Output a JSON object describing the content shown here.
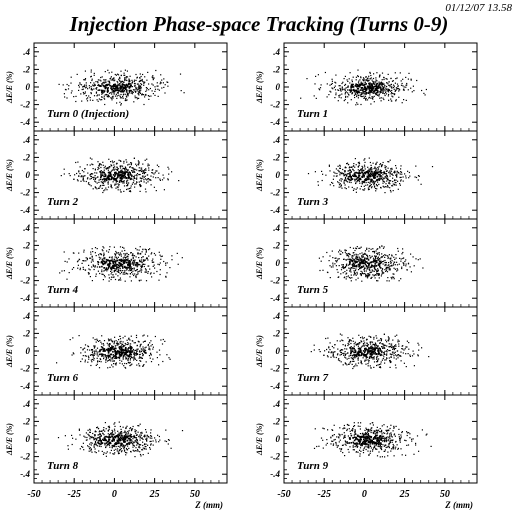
{
  "header": {
    "timestamp": "01/12/07   13.58",
    "title": "Injection Phase-space Tracking (Turns 0-9)"
  },
  "chart_data": {
    "type": "scatter",
    "ylabel": "ΔE/E (%)",
    "xlabel": "Z (mm)",
    "xlim": [
      -50,
      70
    ],
    "ylim": [
      -0.5,
      0.5
    ],
    "x_ticks": [
      -50,
      -25,
      0,
      25,
      50
    ],
    "y_ticks": [
      ".4",
      ".2",
      "0",
      "-.2",
      "-.4"
    ],
    "panels": [
      {
        "label": "Turn 0 (Injection)",
        "spread_z": 25,
        "spread_e": 0.075
      },
      {
        "label": "Turn 1",
        "spread_z": 23,
        "spread_e": 0.08
      },
      {
        "label": "Turn 2",
        "spread_z": 23,
        "spread_e": 0.085
      },
      {
        "label": "Turn 3",
        "spread_z": 22,
        "spread_e": 0.085
      },
      {
        "label": "Turn 4",
        "spread_z": 24,
        "spread_e": 0.09
      },
      {
        "label": "Turn 5",
        "spread_z": 22,
        "spread_e": 0.09
      },
      {
        "label": "Turn 6",
        "spread_z": 21,
        "spread_e": 0.085
      },
      {
        "label": "Turn 7",
        "spread_z": 23,
        "spread_e": 0.085
      },
      {
        "label": "Turn 8",
        "spread_z": 22,
        "spread_e": 0.085
      },
      {
        "label": "Turn 9",
        "spread_z": 22,
        "spread_e": 0.085
      }
    ]
  }
}
